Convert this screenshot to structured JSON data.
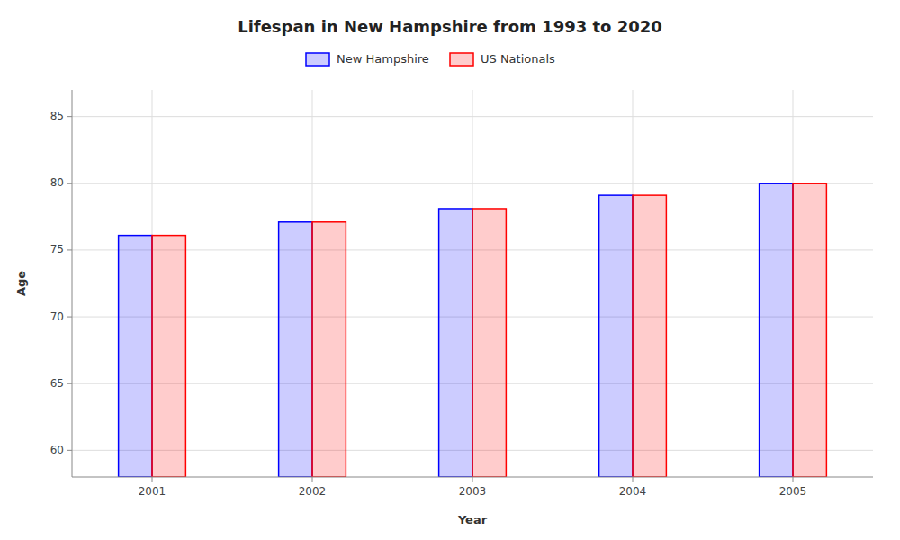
{
  "chart_data": {
    "type": "bar",
    "title": "Lifespan in New Hampshire from 1993 to 2020",
    "x_label": "Year",
    "y_label": "Age",
    "categories": [
      "2001",
      "2002",
      "2003",
      "2004",
      "2005"
    ],
    "series": [
      {
        "name": "New Hampshire",
        "color": "#0000ff",
        "values": [
          76.1,
          77.1,
          78.1,
          79.1,
          80.0
        ]
      },
      {
        "name": "US Nationals",
        "color": "#ff0000",
        "values": [
          76.1,
          77.1,
          78.1,
          79.1,
          80.0
        ]
      }
    ],
    "ylim": [
      58,
      87
    ],
    "yticks": [
      60,
      65,
      70,
      75,
      80,
      85
    ],
    "grid": true,
    "legend": "top"
  }
}
